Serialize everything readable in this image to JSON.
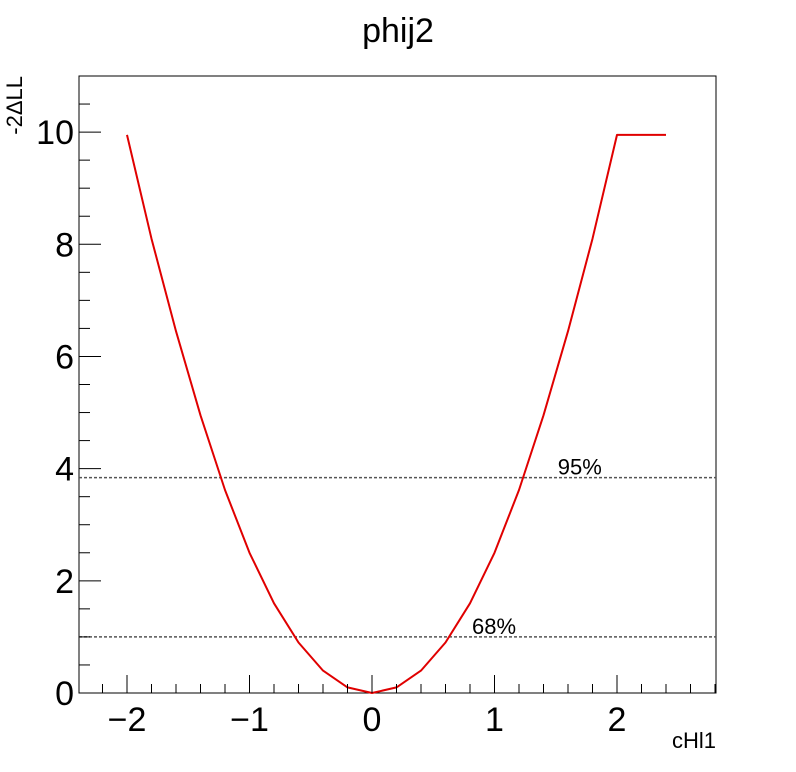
{
  "chart_data": {
    "type": "line",
    "title": "phij2",
    "xlabel": "cHl1",
    "ylabel": "-2ΔLL",
    "xlim": [
      -2.4,
      2.8
    ],
    "ylim": [
      0,
      11
    ],
    "grid": false,
    "x_ticks": [
      {
        "value": -2,
        "label": "−2"
      },
      {
        "value": -1,
        "label": "−1"
      },
      {
        "value": 0,
        "label": "0"
      },
      {
        "value": 1,
        "label": "1"
      },
      {
        "value": 2,
        "label": "2"
      }
    ],
    "y_ticks": [
      {
        "value": 0,
        "label": "0"
      },
      {
        "value": 2,
        "label": "2"
      },
      {
        "value": 4,
        "label": "4"
      },
      {
        "value": 6,
        "label": "6"
      },
      {
        "value": 8,
        "label": "8"
      },
      {
        "value": 10,
        "label": "10"
      }
    ],
    "series": [
      {
        "color": "#e00000",
        "x": [
          -2.0,
          -1.8,
          -1.6,
          -1.4,
          -1.2,
          -1.0,
          -0.8,
          -0.6,
          -0.4,
          -0.2,
          0.0,
          0.2,
          0.4,
          0.6,
          0.8,
          1.0,
          1.2,
          1.4,
          1.6,
          1.8,
          2.0,
          2.2,
          2.4
        ],
        "y": [
          9.95,
          8.1,
          6.45,
          4.95,
          3.62,
          2.5,
          1.6,
          0.9,
          0.4,
          0.1,
          0.0,
          0.1,
          0.4,
          0.9,
          1.6,
          2.5,
          3.62,
          4.95,
          6.45,
          8.1,
          9.95,
          9.95,
          9.95
        ]
      }
    ],
    "reference_lines": [
      {
        "y": 3.84,
        "label": "95%",
        "label_x": 1.5,
        "color": "#555555"
      },
      {
        "y": 1.0,
        "label": "68%",
        "label_x": 0.8,
        "color": "#555555"
      }
    ]
  }
}
